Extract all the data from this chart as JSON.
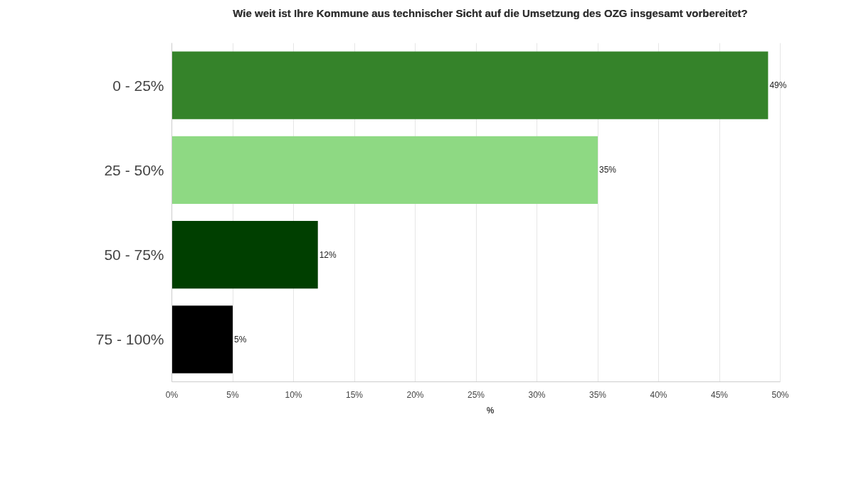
{
  "chart_data": {
    "type": "bar",
    "orientation": "horizontal",
    "title": "Wie weit ist Ihre Kommune aus technischer Sicht auf die Umsetzung des OZG insgesamt vorbereitet?",
    "xlabel": "%",
    "categories": [
      "0 - 25%",
      "25 - 50%",
      "50 - 75%",
      "75 - 100%"
    ],
    "values": [
      49,
      35,
      12,
      5
    ],
    "colors": [
      "#35832a",
      "#8ed983",
      "#003f00",
      "#000000"
    ],
    "value_labels": [
      "49%",
      "35%",
      "12%",
      "5%"
    ],
    "xlim": [
      0,
      50
    ],
    "xticks": [
      {
        "value": 0,
        "label": "0%"
      },
      {
        "value": 5,
        "label": "5%"
      },
      {
        "value": 10,
        "label": "10%"
      },
      {
        "value": 15,
        "label": "15%"
      },
      {
        "value": 20,
        "label": "20%"
      },
      {
        "value": 25,
        "label": "25%"
      },
      {
        "value": 30,
        "label": "30%"
      },
      {
        "value": 35,
        "label": "35%"
      },
      {
        "value": 40,
        "label": "40%"
      },
      {
        "value": 45,
        "label": "45%"
      },
      {
        "value": 50,
        "label": "50%"
      }
    ],
    "grid": "x"
  }
}
